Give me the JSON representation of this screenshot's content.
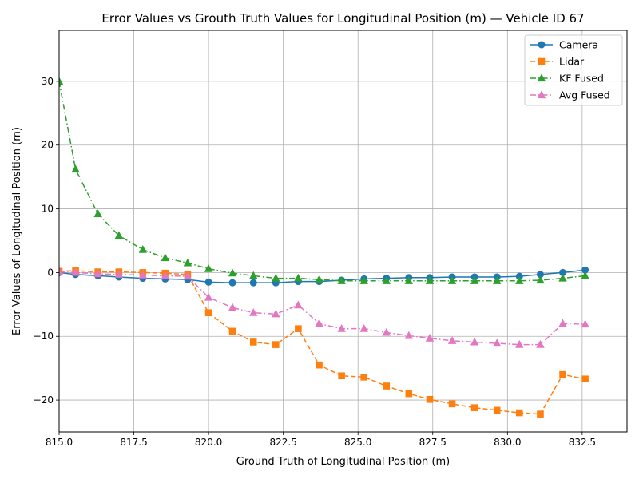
{
  "chart_data": {
    "type": "line",
    "title": "Error Values vs Grouth Truth Values for Longitudinal Position (m) — Vehicle ID 67",
    "xlabel": "Ground Truth of Longitudinal Position (m)",
    "ylabel": "Error Values of Longitudinal Position (m)",
    "xlim": [
      815.0,
      834.0
    ],
    "ylim": [
      -25.0,
      38.0
    ],
    "xticks": [
      815.0,
      817.5,
      820.0,
      822.5,
      825.0,
      827.5,
      830.0,
      832.5
    ],
    "xtick_labels": [
      "815.0",
      "817.5",
      "820.0",
      "822.5",
      "825.0",
      "827.5",
      "830.0",
      "832.5"
    ],
    "yticks": [
      -20,
      -10,
      0,
      10,
      20,
      30
    ],
    "ytick_labels": [
      "−20",
      "−10",
      "0",
      "10",
      "20",
      "30"
    ],
    "grid": true,
    "legend_position": "top-right",
    "x": [
      815.0,
      815.55,
      816.3,
      817.0,
      817.8,
      818.55,
      819.3,
      820.0,
      820.8,
      821.5,
      822.25,
      823.0,
      823.7,
      824.45,
      825.2,
      825.95,
      826.7,
      827.4,
      828.15,
      828.9,
      829.65,
      830.4,
      831.1,
      831.85,
      832.6
    ],
    "series": [
      {
        "name": "Camera",
        "color": "#1f77b4",
        "marker": "circle",
        "linestyle": "solid",
        "values": [
          0.0,
          -0.3,
          -0.5,
          -0.7,
          -0.9,
          -1.0,
          -1.1,
          -1.5,
          -1.6,
          -1.6,
          -1.6,
          -1.4,
          -1.4,
          -1.2,
          -1.0,
          -0.9,
          -0.8,
          -0.8,
          -0.7,
          -0.7,
          -0.7,
          -0.6,
          -0.3,
          0.0,
          0.4
        ]
      },
      {
        "name": "Lidar",
        "color": "#ff7f0e",
        "marker": "square",
        "linestyle": "dashed",
        "values": [
          0.2,
          0.3,
          0.1,
          0.1,
          0.0,
          -0.1,
          -0.3,
          -6.3,
          -9.2,
          -10.9,
          -11.3,
          -8.8,
          -14.5,
          -16.2,
          -16.4,
          -17.8,
          -19.0,
          -19.9,
          -20.6,
          -21.2,
          -21.6,
          -22.0,
          -22.2,
          -16.0,
          -16.7
        ]
      },
      {
        "name": "KF Fused",
        "color": "#2ca02c",
        "marker": "triangle",
        "linestyle": "dashdot",
        "values": [
          30.0,
          16.2,
          9.2,
          5.8,
          3.6,
          2.3,
          1.5,
          0.6,
          -0.1,
          -0.5,
          -0.9,
          -0.9,
          -1.1,
          -1.3,
          -1.3,
          -1.3,
          -1.3,
          -1.3,
          -1.3,
          -1.3,
          -1.3,
          -1.3,
          -1.2,
          -0.9,
          -0.5
        ]
      },
      {
        "name": "Avg Fused",
        "color": "#e377c2",
        "marker": "triangle",
        "linestyle": "dashdot",
        "values": [
          0.1,
          0.0,
          -0.2,
          -0.3,
          -0.4,
          -0.5,
          -0.6,
          -3.9,
          -5.5,
          -6.3,
          -6.5,
          -5.1,
          -8.0,
          -8.8,
          -8.8,
          -9.4,
          -9.9,
          -10.3,
          -10.7,
          -10.9,
          -11.1,
          -11.3,
          -11.3,
          -8.0,
          -8.1
        ]
      }
    ]
  }
}
